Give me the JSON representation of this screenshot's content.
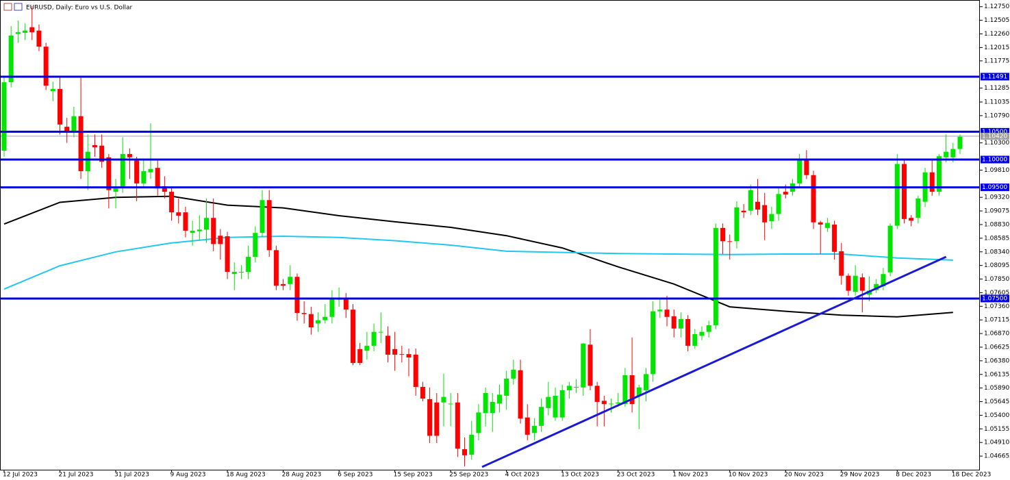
{
  "chart_data": {
    "type": "candlestick",
    "title": "EURUSD, Daily:  Euro vs U.S. Dollar",
    "categories": [
      "12 Jul 2023",
      null,
      null,
      null,
      null,
      null,
      null,
      null,
      "21 Jul 2023",
      null,
      null,
      null,
      null,
      null,
      null,
      null,
      "31 Jul 2023",
      null,
      null,
      null,
      null,
      null,
      null,
      null,
      "9 Aug 2023",
      null,
      null,
      null,
      null,
      null,
      null,
      null,
      "18 Aug 2023",
      null,
      null,
      null,
      null,
      null,
      null,
      null,
      "28 Aug 2023",
      null,
      null,
      null,
      null,
      null,
      null,
      null,
      "6 Sep 2023",
      null,
      null,
      null,
      null,
      null,
      null,
      null,
      "15 Sep 2023",
      null,
      null,
      null,
      null,
      null,
      null,
      null,
      "25 Sep 2023",
      null,
      null,
      null,
      null,
      null,
      null,
      null,
      "4 Oct 2023",
      null,
      null,
      null,
      null,
      null,
      null,
      null,
      "13 Oct 2023",
      null,
      null,
      null,
      null,
      null,
      null,
      null,
      "23 Oct 2023",
      null,
      null,
      null,
      null,
      null,
      null,
      null,
      "1 Nov 2023",
      null,
      null,
      null,
      null,
      null,
      null,
      null,
      "10 Nov 2023",
      null,
      null,
      null,
      null,
      null,
      null,
      null,
      "20 Nov 2023",
      null,
      null,
      null,
      null,
      null,
      null,
      null,
      "29 Nov 2023",
      null,
      null,
      null,
      null,
      null,
      null,
      null,
      "8 Dec 2023",
      null,
      null,
      null,
      null,
      null,
      null,
      null,
      "18 Dec 2023",
      null
    ],
    "ohlc": [
      [
        1.1016,
        1.115,
        1.1005,
        1.1139
      ],
      [
        1.1139,
        1.124,
        1.113,
        1.1223
      ],
      [
        1.1226,
        1.125,
        1.121,
        1.1229
      ],
      [
        1.1228,
        1.1245,
        1.1215,
        1.1232
      ],
      [
        1.1238,
        1.1276,
        1.1215,
        1.1229
      ],
      [
        1.1232,
        1.1243,
        1.1195,
        1.1203
      ],
      [
        1.1203,
        1.121,
        1.1125,
        1.1133
      ],
      [
        1.1123,
        1.114,
        1.1105,
        1.1127
      ],
      [
        1.1127,
        1.1149,
        1.1045,
        1.1063
      ],
      [
        1.1059,
        1.1075,
        1.103,
        1.1051
      ],
      [
        1.1051,
        1.1095,
        1.104,
        1.1078
      ],
      [
        1.1078,
        1.115,
        1.0965,
        1.0979
      ],
      [
        1.0979,
        1.1045,
        1.0945,
        1.1014
      ],
      [
        1.1026,
        1.1045,
        1.1005,
        1.1022
      ],
      [
        1.1025,
        1.1045,
        1.0985,
        1.0996
      ],
      [
        1.1004,
        1.101,
        1.0912,
        1.0945
      ],
      [
        1.0942,
        1.0965,
        1.0912,
        1.0948
      ],
      [
        1.0952,
        1.104,
        1.094,
        1.101
      ],
      [
        1.101,
        1.102,
        1.0965,
        1.1004
      ],
      [
        1.0998,
        1.1005,
        1.0925,
        1.0957
      ],
      [
        1.0957,
        1.1,
        1.095,
        1.0979
      ],
      [
        1.0977,
        1.1065,
        1.0965,
        1.0983
      ],
      [
        1.0985,
        1.1,
        1.0935,
        1.0948
      ],
      [
        1.0952,
        1.097,
        1.093,
        1.0942
      ],
      [
        1.0942,
        1.095,
        1.089,
        1.0905
      ],
      [
        1.0905,
        1.093,
        1.0885,
        1.0899
      ],
      [
        1.0905,
        1.0915,
        1.086,
        1.0872
      ],
      [
        1.0868,
        1.089,
        1.0845,
        1.0872
      ],
      [
        1.0871,
        1.09,
        1.0855,
        1.0874
      ],
      [
        1.0874,
        1.093,
        1.085,
        1.0895
      ],
      [
        1.0895,
        1.093,
        1.0835,
        1.0848
      ],
      [
        1.0863,
        1.0875,
        1.082,
        1.0848
      ],
      [
        1.0862,
        1.087,
        1.0785,
        1.0798
      ],
      [
        1.0794,
        1.0815,
        1.0765,
        1.0798
      ],
      [
        1.0797,
        1.081,
        1.0785,
        1.0798
      ],
      [
        1.0798,
        1.0845,
        1.0785,
        1.0825
      ],
      [
        1.0825,
        1.088,
        1.0815,
        1.0868
      ],
      [
        1.0868,
        1.0945,
        1.086,
        1.0927
      ],
      [
        1.0927,
        1.0945,
        1.0825,
        1.0837
      ],
      [
        1.0837,
        1.0845,
        1.0765,
        1.0773
      ],
      [
        1.0776,
        1.0785,
        1.0765,
        1.0773
      ],
      [
        1.0776,
        1.081,
        1.0765,
        1.0789
      ],
      [
        1.0789,
        1.0795,
        1.071,
        1.0724
      ],
      [
        1.0724,
        1.0745,
        1.0705,
        1.0722
      ],
      [
        1.0722,
        1.0735,
        1.0685,
        1.0698
      ],
      [
        1.0705,
        1.0725,
        1.069,
        1.0711
      ],
      [
        1.0711,
        1.074,
        1.0705,
        1.0717
      ],
      [
        1.0717,
        1.0765,
        1.0705,
        1.0749
      ],
      [
        1.0748,
        1.077,
        1.0735,
        1.0749
      ],
      [
        1.0749,
        1.076,
        1.0715,
        1.073
      ],
      [
        1.073,
        1.074,
        1.063,
        1.0634
      ],
      [
        1.0659,
        1.067,
        1.063,
        1.0634
      ],
      [
        1.0656,
        1.069,
        1.064,
        1.0665
      ],
      [
        1.0665,
        1.0705,
        1.0655,
        1.069
      ],
      [
        1.0689,
        1.0725,
        1.067,
        1.069
      ],
      [
        1.0683,
        1.07,
        1.0635,
        1.0649
      ],
      [
        1.0659,
        1.069,
        1.062,
        1.0649
      ],
      [
        1.065,
        1.0665,
        1.0635,
        1.0649
      ],
      [
        1.065,
        1.066,
        1.061,
        1.0644
      ],
      [
        1.0649,
        1.066,
        1.0575,
        1.0591
      ],
      [
        1.0591,
        1.06,
        1.0565,
        1.057
      ],
      [
        1.0569,
        1.059,
        1.049,
        1.0503
      ],
      [
        1.0563,
        1.058,
        1.049,
        1.0503
      ],
      [
        1.0563,
        1.0615,
        1.052,
        1.0573
      ],
      [
        1.056,
        1.058,
        1.052,
        1.0561
      ],
      [
        1.0563,
        1.058,
        1.0465,
        1.048
      ],
      [
        1.0479,
        1.05,
        1.0448,
        1.0468
      ],
      [
        1.0469,
        1.053,
        1.046,
        1.0505
      ],
      [
        1.0508,
        1.056,
        1.0495,
        1.0545
      ],
      [
        1.0544,
        1.059,
        1.052,
        1.058
      ],
      [
        1.0544,
        1.058,
        1.051,
        1.0564
      ],
      [
        1.0561,
        1.0595,
        1.0545,
        1.0577
      ],
      [
        1.0575,
        1.062,
        1.055,
        1.0606
      ],
      [
        1.0606,
        1.064,
        1.0595,
        1.0622
      ],
      [
        1.0621,
        1.064,
        1.0525,
        1.0534
      ],
      [
        1.0536,
        1.056,
        1.0495,
        1.0505
      ],
      [
        1.0508,
        1.0535,
        1.0495,
        1.0521
      ],
      [
        1.0521,
        1.057,
        1.051,
        1.0555
      ],
      [
        1.0553,
        1.06,
        1.054,
        1.0573
      ],
      [
        1.0536,
        1.059,
        1.053,
        1.0575
      ],
      [
        1.0536,
        1.0595,
        1.053,
        1.0585
      ],
      [
        1.0585,
        1.06,
        1.057,
        1.0593
      ],
      [
        1.059,
        1.0605,
        1.058,
        1.0591
      ],
      [
        1.059,
        1.067,
        1.0575,
        1.0669
      ],
      [
        1.0667,
        1.0695,
        1.0585,
        1.0593
      ],
      [
        1.0593,
        1.06,
        1.052,
        1.0564
      ],
      [
        1.0566,
        1.0575,
        1.052,
        1.056
      ],
      [
        1.056,
        1.057,
        1.0545,
        1.0561
      ],
      [
        1.0561,
        1.058,
        1.0555,
        1.0563
      ],
      [
        1.056,
        1.0625,
        1.0555,
        1.0612
      ],
      [
        1.0612,
        1.068,
        1.0545,
        1.056
      ],
      [
        1.0575,
        1.0595,
        1.0515,
        1.059
      ],
      [
        1.0585,
        1.0625,
        1.0565,
        1.0614
      ],
      [
        1.0614,
        1.0745,
        1.06,
        1.0727
      ],
      [
        1.0727,
        1.075,
        1.0715,
        1.073
      ],
      [
        1.073,
        1.0755,
        1.07,
        1.0717
      ],
      [
        1.0718,
        1.073,
        1.068,
        1.0696
      ],
      [
        1.0696,
        1.0725,
        1.068,
        1.0713
      ],
      [
        1.0713,
        1.072,
        1.0655,
        1.0665
      ],
      [
        1.0665,
        1.0695,
        1.066,
        1.0686
      ],
      [
        1.0683,
        1.07,
        1.0675,
        1.069
      ],
      [
        1.069,
        1.071,
        1.068,
        1.0702
      ],
      [
        1.0702,
        1.0885,
        1.0695,
        1.0877
      ],
      [
        1.0877,
        1.0885,
        1.083,
        1.0853
      ],
      [
        1.0853,
        1.0865,
        1.082,
        1.0852
      ],
      [
        1.0853,
        1.0925,
        1.084,
        1.0914
      ],
      [
        1.0908,
        1.092,
        1.0895,
        1.0905
      ],
      [
        1.0908,
        1.0955,
        1.09,
        1.0945
      ],
      [
        1.0924,
        1.0965,
        1.09,
        1.091
      ],
      [
        1.0918,
        1.094,
        1.0855,
        1.0887
      ],
      [
        1.0889,
        1.0915,
        1.0875,
        1.0902
      ],
      [
        1.0902,
        1.095,
        1.089,
        1.0938
      ],
      [
        1.0942,
        1.0955,
        1.093,
        1.0937
      ],
      [
        1.0942,
        1.0965,
        1.0935,
        1.0957
      ],
      [
        1.0957,
        1.101,
        1.095,
        1.1001
      ],
      [
        1.1001,
        1.1017,
        1.0965,
        1.0972
      ],
      [
        1.0972,
        1.098,
        1.0875,
        1.0887
      ],
      [
        1.0887,
        1.089,
        1.083,
        1.0883
      ],
      [
        1.0877,
        1.0895,
        1.087,
        1.0886
      ],
      [
        1.0883,
        1.089,
        1.082,
        1.0834
      ],
      [
        1.0835,
        1.085,
        1.0775,
        1.0791
      ],
      [
        1.0791,
        1.0795,
        1.0755,
        1.0764
      ],
      [
        1.0762,
        1.081,
        1.0755,
        1.0791
      ],
      [
        1.0788,
        1.0795,
        1.0725,
        1.0764
      ],
      [
        1.0757,
        1.079,
        1.0745,
        1.0764
      ],
      [
        1.0765,
        1.0785,
        1.076,
        1.0776
      ],
      [
        1.0772,
        1.0805,
        1.0765,
        1.0794
      ],
      [
        1.0797,
        1.0885,
        1.079,
        1.0881
      ],
      [
        1.0881,
        1.101,
        1.0875,
        1.0992
      ],
      [
        1.0992,
        1.1,
        1.0885,
        1.0893
      ],
      [
        1.0895,
        1.09,
        1.088,
        1.089
      ],
      [
        1.0895,
        1.0935,
        1.0885,
        1.093
      ],
      [
        1.0924,
        1.0985,
        1.0915,
        1.0977
      ],
      [
        1.0977,
        1.1,
        1.0935,
        1.0942
      ],
      [
        1.0942,
        1.101,
        1.0935,
        1.1006
      ],
      [
        1.1004,
        1.1045,
        1.0995,
        1.1014
      ],
      [
        1.1004,
        1.103,
        1.0995,
        1.1019
      ],
      [
        1.1019,
        1.1045,
        1.101,
        1.1041
      ]
    ],
    "up_color": "#00e600",
    "down_color": "#ff0000",
    "lines": [
      {
        "color": "#000000",
        "x": [
          0,
          8,
          16,
          24,
          32,
          40,
          48,
          56,
          64,
          72,
          80,
          88,
          96,
          104,
          112,
          120,
          128,
          136
        ],
        "values": [
          1.0884,
          1.0923,
          1.0932,
          1.0934,
          1.0918,
          1.0913,
          1.0899,
          1.0888,
          1.0878,
          1.0863,
          1.0841,
          1.0807,
          1.0776,
          1.0735,
          1.0727,
          1.072,
          1.0717,
          1.0725
        ]
      },
      {
        "color": "#1ec8f0",
        "x": [
          0,
          8,
          16,
          24,
          32,
          40,
          48,
          56,
          64,
          72,
          80,
          88,
          96,
          104,
          112,
          120,
          128,
          136
        ],
        "values": [
          1.0767,
          1.0809,
          1.0834,
          1.085,
          1.086,
          1.0862,
          1.086,
          1.0854,
          1.0846,
          1.0835,
          1.0833,
          1.0831,
          1.083,
          1.0829,
          1.083,
          1.083,
          1.0823,
          1.0819
        ]
      }
    ],
    "levels": [
      1.11491,
      {
        "value": 1.105,
        "label": "1.10500"
      },
      {
        "value": 1.1,
        "label": "1.10000"
      },
      {
        "value": 1.095,
        "label": "1.09500"
      },
      {
        "value": 1.075,
        "label": "1.07500"
      }
    ],
    "level_color": "#0000e6",
    "trendline": {
      "color": "#1a1ad6",
      "x": [
        68.5,
        135
      ],
      "values": [
        1.0447,
        1.0825
      ]
    },
    "current_price": {
      "value": 1.1042,
      "label": "1.10420"
    },
    "current_price_color": "#a0a0a0",
    "ylim": [
      1.0442,
      1.1287
    ],
    "yticks": [
      {
        "value": 1.1275,
        "label": "1.12750"
      },
      1.12505,
      {
        "value": 1.1226,
        "label": "1.12260"
      },
      1.12015,
      1.11775,
      1.11285,
      1.11035,
      {
        "value": 1.1079,
        "label": "1.10790"
      },
      {
        "value": 1.103,
        "label": "1.10300"
      },
      {
        "value": 1.0981,
        "label": "1.09810"
      },
      {
        "value": 1.0932,
        "label": "1.09320"
      },
      1.09075,
      {
        "value": 1.0883,
        "label": "1.08830"
      },
      1.08585,
      {
        "value": 1.0834,
        "label": "1.08340"
      },
      1.08095,
      {
        "value": 1.0785,
        "label": "1.07850"
      },
      1.07605,
      {
        "value": 1.0736,
        "label": "1.07360"
      },
      1.07115,
      {
        "value": 1.0687,
        "label": "1.06870"
      },
      1.06625,
      {
        "value": 1.0638,
        "label": "1.06380"
      },
      1.06135,
      {
        "value": 1.0589,
        "label": "1.05890"
      },
      1.05645,
      {
        "value": 1.054,
        "label": "1.05400"
      },
      1.05155,
      {
        "value": 1.0491,
        "label": "1.04910"
      },
      1.04665
    ]
  }
}
